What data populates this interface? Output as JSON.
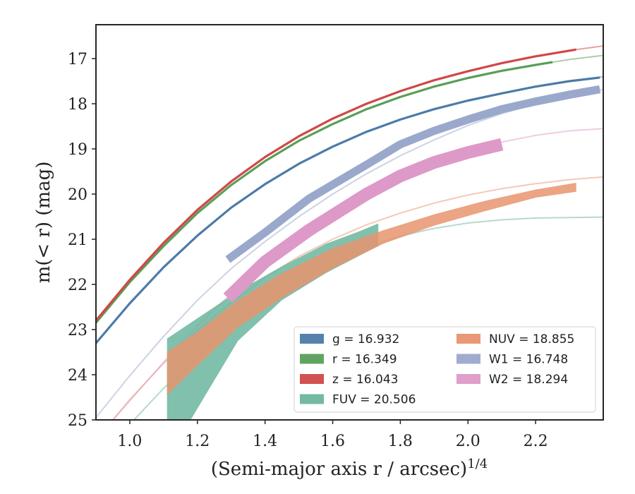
{
  "chart_data": {
    "type": "line",
    "xlabel": "(Semi-major axis r / arcsec)1/4",
    "ylabel": "m(< r) (mag)",
    "xlim": [
      0.9,
      2.4
    ],
    "ylim": [
      25.0,
      16.25
    ],
    "y_inverted": true,
    "xticks": [
      "1.0",
      "1.2",
      "1.4",
      "1.6",
      "1.8",
      "2.0",
      "2.2"
    ],
    "xtick_values": [
      1.0,
      1.2,
      1.4,
      1.6,
      1.8,
      2.0,
      2.2
    ],
    "yticks": [
      "17",
      "18",
      "19",
      "20",
      "21",
      "22",
      "23",
      "24",
      "25"
    ],
    "ytick_values": [
      17,
      18,
      19,
      20,
      21,
      22,
      23,
      24,
      25
    ],
    "grid": false,
    "legend_position": "lower right",
    "legend": [
      {
        "key": "g",
        "text": "g = 16.932"
      },
      {
        "key": "r",
        "text": "r = 16.349"
      },
      {
        "key": "z",
        "text": "z = 16.043"
      },
      {
        "key": "FUV",
        "text": "FUV = 20.506"
      },
      {
        "key": "NUV",
        "text": "NUV = 18.855"
      },
      {
        "key": "W1",
        "text": "W1 = 16.748"
      },
      {
        "key": "W2",
        "text": "W2 = 18.294"
      }
    ],
    "series": [
      {
        "name": "g",
        "color": "#4c7ba8",
        "model": [
          [
            0.9,
            23.3
          ],
          [
            1.0,
            22.42
          ],
          [
            1.1,
            21.62
          ],
          [
            1.2,
            20.92
          ],
          [
            1.3,
            20.3
          ],
          [
            1.4,
            19.78
          ],
          [
            1.5,
            19.33
          ],
          [
            1.6,
            18.95
          ],
          [
            1.7,
            18.62
          ],
          [
            1.8,
            18.35
          ],
          [
            1.9,
            18.12
          ],
          [
            2.0,
            17.93
          ],
          [
            2.1,
            17.77
          ],
          [
            2.2,
            17.62
          ],
          [
            2.3,
            17.5
          ],
          [
            2.4,
            17.4
          ]
        ],
        "data": [
          [
            0.9,
            23.3
          ],
          [
            1.0,
            22.42
          ],
          [
            1.1,
            21.62
          ],
          [
            1.2,
            20.92
          ],
          [
            1.3,
            20.3
          ],
          [
            1.4,
            19.78
          ],
          [
            1.5,
            19.33
          ],
          [
            1.6,
            18.95
          ],
          [
            1.7,
            18.62
          ],
          [
            1.8,
            18.35
          ],
          [
            1.9,
            18.12
          ],
          [
            2.0,
            17.93
          ],
          [
            2.1,
            17.77
          ],
          [
            2.2,
            17.62
          ],
          [
            2.3,
            17.5
          ],
          [
            2.39,
            17.42
          ]
        ],
        "data_width": 0.05
      },
      {
        "name": "r",
        "color": "#5a9e58",
        "model": [
          [
            0.9,
            22.85
          ],
          [
            1.0,
            21.95
          ],
          [
            1.1,
            21.15
          ],
          [
            1.2,
            20.42
          ],
          [
            1.3,
            19.8
          ],
          [
            1.4,
            19.27
          ],
          [
            1.5,
            18.82
          ],
          [
            1.6,
            18.45
          ],
          [
            1.7,
            18.12
          ],
          [
            1.8,
            17.85
          ],
          [
            1.9,
            17.62
          ],
          [
            2.0,
            17.43
          ],
          [
            2.1,
            17.27
          ],
          [
            2.2,
            17.14
          ],
          [
            2.3,
            17.02
          ],
          [
            2.4,
            16.93
          ]
        ],
        "data": [
          [
            0.9,
            22.85
          ],
          [
            1.0,
            21.95
          ],
          [
            1.1,
            21.15
          ],
          [
            1.2,
            20.42
          ],
          [
            1.3,
            19.8
          ],
          [
            1.4,
            19.27
          ],
          [
            1.5,
            18.82
          ],
          [
            1.6,
            18.45
          ],
          [
            1.7,
            18.12
          ],
          [
            1.8,
            17.85
          ],
          [
            1.9,
            17.62
          ],
          [
            2.0,
            17.43
          ],
          [
            2.1,
            17.27
          ],
          [
            2.2,
            17.14
          ],
          [
            2.25,
            17.08
          ]
        ],
        "data_width": 0.05
      },
      {
        "name": "z",
        "color": "#d04848",
        "model": [
          [
            0.9,
            22.8
          ],
          [
            1.0,
            21.9
          ],
          [
            1.1,
            21.08
          ],
          [
            1.2,
            20.35
          ],
          [
            1.3,
            19.72
          ],
          [
            1.4,
            19.18
          ],
          [
            1.5,
            18.72
          ],
          [
            1.6,
            18.33
          ],
          [
            1.7,
            18.0
          ],
          [
            1.8,
            17.72
          ],
          [
            1.9,
            17.48
          ],
          [
            2.0,
            17.28
          ],
          [
            2.1,
            17.1
          ],
          [
            2.2,
            16.95
          ],
          [
            2.3,
            16.82
          ],
          [
            2.4,
            16.72
          ]
        ],
        "data": [
          [
            0.9,
            22.8
          ],
          [
            1.0,
            21.9
          ],
          [
            1.1,
            21.08
          ],
          [
            1.2,
            20.35
          ],
          [
            1.3,
            19.72
          ],
          [
            1.4,
            19.18
          ],
          [
            1.5,
            18.72
          ],
          [
            1.6,
            18.33
          ],
          [
            1.7,
            18.0
          ],
          [
            1.8,
            17.72
          ],
          [
            1.9,
            17.48
          ],
          [
            2.0,
            17.28
          ],
          [
            2.1,
            17.1
          ],
          [
            2.2,
            16.95
          ],
          [
            2.32,
            16.8
          ]
        ],
        "data_width": 0.05
      },
      {
        "name": "FUV",
        "color": "#6bb59e",
        "model": [
          [
            0.9,
            26.0
          ],
          [
            1.0,
            25.1
          ],
          [
            1.1,
            24.3
          ],
          [
            1.2,
            23.6
          ],
          [
            1.3,
            22.95
          ],
          [
            1.4,
            22.4
          ],
          [
            1.5,
            21.9
          ],
          [
            1.6,
            21.5
          ],
          [
            1.7,
            21.18
          ],
          [
            1.8,
            20.93
          ],
          [
            1.9,
            20.76
          ],
          [
            2.0,
            20.64
          ],
          [
            2.1,
            20.57
          ],
          [
            2.2,
            20.53
          ],
          [
            2.3,
            20.52
          ],
          [
            2.4,
            20.51
          ]
        ],
        "data_upper": [
          [
            1.11,
            23.2
          ],
          [
            1.2,
            22.75
          ],
          [
            1.32,
            22.15
          ],
          [
            1.45,
            21.6
          ],
          [
            1.58,
            21.1
          ],
          [
            1.67,
            20.85
          ],
          [
            1.735,
            20.65
          ]
        ],
        "data_lower": [
          [
            1.11,
            25.2
          ],
          [
            1.18,
            25.0
          ],
          [
            1.32,
            23.25
          ],
          [
            1.45,
            22.35
          ],
          [
            1.58,
            21.75
          ],
          [
            1.67,
            21.4
          ],
          [
            1.735,
            21.15
          ]
        ]
      },
      {
        "name": "NUV",
        "color": "#e8946e",
        "model": [
          [
            0.95,
            25.0
          ],
          [
            1.0,
            24.55
          ],
          [
            1.1,
            23.75
          ],
          [
            1.2,
            23.02
          ],
          [
            1.3,
            22.4
          ],
          [
            1.4,
            21.85
          ],
          [
            1.5,
            21.38
          ],
          [
            1.6,
            21.0
          ],
          [
            1.7,
            20.68
          ],
          [
            1.8,
            20.42
          ],
          [
            1.9,
            20.2
          ],
          [
            2.0,
            20.02
          ],
          [
            2.1,
            19.88
          ],
          [
            2.2,
            19.77
          ],
          [
            2.3,
            19.68
          ],
          [
            2.4,
            19.62
          ]
        ],
        "data_upper": [
          [
            1.11,
            23.5
          ],
          [
            1.2,
            23.05
          ],
          [
            1.32,
            22.35
          ],
          [
            1.45,
            21.75
          ],
          [
            1.6,
            21.2
          ],
          [
            1.75,
            20.8
          ],
          [
            1.9,
            20.45
          ],
          [
            2.05,
            20.15
          ],
          [
            2.2,
            19.9
          ],
          [
            2.32,
            19.75
          ]
        ],
        "data_lower": [
          [
            1.11,
            24.45
          ],
          [
            1.2,
            23.8
          ],
          [
            1.32,
            22.95
          ],
          [
            1.45,
            22.3
          ],
          [
            1.6,
            21.65
          ],
          [
            1.75,
            21.1
          ],
          [
            1.9,
            20.7
          ],
          [
            2.05,
            20.38
          ],
          [
            2.2,
            20.08
          ],
          [
            2.32,
            19.95
          ]
        ]
      },
      {
        "name": "W1",
        "color": "#9aa8cc",
        "model": [
          [
            0.9,
            24.95
          ],
          [
            1.0,
            24.02
          ],
          [
            1.1,
            23.15
          ],
          [
            1.2,
            22.35
          ],
          [
            1.3,
            21.65
          ],
          [
            1.4,
            21.05
          ],
          [
            1.5,
            20.5
          ],
          [
            1.6,
            20.0
          ],
          [
            1.7,
            19.55
          ],
          [
            1.8,
            19.15
          ],
          [
            1.9,
            18.8
          ],
          [
            2.0,
            18.48
          ],
          [
            2.1,
            18.22
          ],
          [
            2.2,
            18.0
          ],
          [
            2.3,
            17.83
          ],
          [
            2.4,
            17.68
          ]
        ],
        "data": [
          [
            1.29,
            21.45
          ],
          [
            1.4,
            20.85
          ],
          [
            1.53,
            20.1
          ],
          [
            1.7,
            19.35
          ],
          [
            1.8,
            18.9
          ],
          [
            1.9,
            18.6
          ],
          [
            2.0,
            18.35
          ],
          [
            2.1,
            18.12
          ],
          [
            2.2,
            17.95
          ],
          [
            2.3,
            17.8
          ],
          [
            2.39,
            17.68
          ]
        ],
        "data_width": 0.18
      },
      {
        "name": "W2",
        "color": "#dd99c8",
        "model": [
          [
            0.95,
            25.0
          ],
          [
            1.0,
            24.58
          ],
          [
            1.1,
            23.72
          ],
          [
            1.2,
            22.92
          ],
          [
            1.3,
            22.2
          ],
          [
            1.4,
            21.55
          ],
          [
            1.5,
            21.0
          ],
          [
            1.6,
            20.5
          ],
          [
            1.7,
            20.05
          ],
          [
            1.8,
            19.65
          ],
          [
            1.9,
            19.32
          ],
          [
            2.0,
            19.05
          ],
          [
            2.1,
            18.85
          ],
          [
            2.2,
            18.7
          ],
          [
            2.3,
            18.6
          ],
          [
            2.4,
            18.55
          ]
        ],
        "data": [
          [
            1.29,
            22.3
          ],
          [
            1.4,
            21.5
          ],
          [
            1.53,
            20.8
          ],
          [
            1.7,
            20.0
          ],
          [
            1.8,
            19.6
          ],
          [
            1.9,
            19.3
          ],
          [
            2.0,
            19.08
          ],
          [
            2.1,
            18.9
          ]
        ],
        "data_width": 0.28
      }
    ]
  }
}
